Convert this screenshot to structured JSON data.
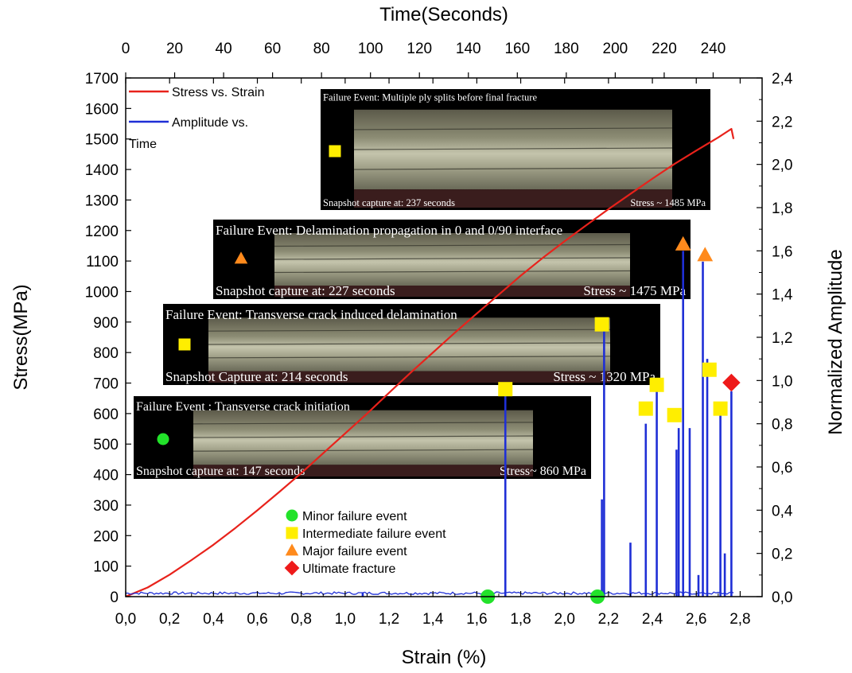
{
  "chart_data": {
    "type": "line",
    "axes": {
      "x_bottom": {
        "label": "Strain (%)",
        "range": [
          0.0,
          2.9
        ],
        "ticks": [
          "0,0",
          "0,2",
          "0,4",
          "0,6",
          "0,8",
          "1,0",
          "1,2",
          "1,4",
          "1,6",
          "1,8",
          "2,0",
          "2,2",
          "2,4",
          "2,6",
          "2,8"
        ]
      },
      "x_top": {
        "label": "Time(Seconds)",
        "range": [
          0,
          260
        ],
        "ticks": [
          "0",
          "20",
          "40",
          "60",
          "80",
          "100",
          "120",
          "140",
          "160",
          "180",
          "200",
          "220",
          "240"
        ]
      },
      "y_left": {
        "label": "Stress(MPa)",
        "range": [
          0,
          1700
        ],
        "ticks": [
          "0",
          "100",
          "200",
          "300",
          "400",
          "500",
          "600",
          "700",
          "800",
          "900",
          "1000",
          "1100",
          "1200",
          "1300",
          "1400",
          "1500",
          "1600",
          "1700"
        ]
      },
      "y_right": {
        "label": "Normalized Amplitude",
        "range": [
          0.0,
          2.4
        ],
        "ticks": [
          "0,0",
          "0,2",
          "0,4",
          "0,6",
          "0,8",
          "1,0",
          "1,2",
          "1,4",
          "1,6",
          "1,8",
          "2,0",
          "2,2",
          "2,4"
        ]
      }
    },
    "legend_top": [
      {
        "label": "Stress vs. Strain",
        "color": "#e8221b"
      },
      {
        "label": "Amplitude vs.",
        "label2": "Time",
        "color": "#1f2fd6"
      }
    ],
    "series": [
      {
        "name": "Stress vs. Strain",
        "color": "#e8221b",
        "points": [
          [
            0.0,
            0
          ],
          [
            0.1,
            30
          ],
          [
            0.2,
            72
          ],
          [
            0.3,
            120
          ],
          [
            0.4,
            170
          ],
          [
            0.5,
            225
          ],
          [
            0.6,
            283
          ],
          [
            0.7,
            343
          ],
          [
            0.8,
            405
          ],
          [
            0.9,
            470
          ],
          [
            1.0,
            535
          ],
          [
            1.1,
            600
          ],
          [
            1.2,
            668
          ],
          [
            1.3,
            735
          ],
          [
            1.4,
            800
          ],
          [
            1.5,
            865
          ],
          [
            1.6,
            928
          ],
          [
            1.7,
            990
          ],
          [
            1.8,
            1052
          ],
          [
            1.9,
            1110
          ],
          [
            2.0,
            1165
          ],
          [
            2.1,
            1218
          ],
          [
            2.2,
            1270
          ],
          [
            2.3,
            1320
          ],
          [
            2.4,
            1370
          ],
          [
            2.5,
            1418
          ],
          [
            2.6,
            1462
          ],
          [
            2.7,
            1505
          ],
          [
            2.76,
            1533
          ],
          [
            2.77,
            1500
          ]
        ]
      },
      {
        "name": "Amplitude vs. Time",
        "color": "#1f2fd6",
        "baseline": 0.01,
        "spikes": [
          [
            1.08,
            0.02
          ],
          [
            1.73,
            0.95
          ],
          [
            2.17,
            0.45
          ],
          [
            2.18,
            1.25
          ],
          [
            2.3,
            0.25
          ],
          [
            2.37,
            0.8
          ],
          [
            2.42,
            0.95
          ],
          [
            2.51,
            0.68
          ],
          [
            2.52,
            0.78
          ],
          [
            2.54,
            1.6
          ],
          [
            2.57,
            0.78
          ],
          [
            2.61,
            0.1
          ],
          [
            2.63,
            1.55
          ],
          [
            2.65,
            1.1
          ],
          [
            2.71,
            0.85
          ],
          [
            2.73,
            0.2
          ],
          [
            2.76,
            0.95
          ]
        ]
      }
    ],
    "markers": [
      {
        "type": "minor",
        "x": 1.65,
        "y": 0.0,
        "shape": "circle"
      },
      {
        "type": "minor",
        "x": 2.15,
        "y": 0.0,
        "shape": "circle"
      },
      {
        "type": "intermediate",
        "x": 1.73,
        "y": 0.96,
        "shape": "square"
      },
      {
        "type": "intermediate",
        "x": 2.17,
        "y": 1.26,
        "shape": "square"
      },
      {
        "type": "intermediate",
        "x": 2.37,
        "y": 0.87,
        "shape": "square"
      },
      {
        "type": "intermediate",
        "x": 2.42,
        "y": 0.98,
        "shape": "square"
      },
      {
        "type": "intermediate",
        "x": 2.5,
        "y": 0.84,
        "shape": "square"
      },
      {
        "type": "intermediate",
        "x": 2.66,
        "y": 1.05,
        "shape": "square"
      },
      {
        "type": "intermediate",
        "x": 2.71,
        "y": 0.87,
        "shape": "square"
      },
      {
        "type": "major",
        "x": 2.54,
        "y": 1.63,
        "shape": "triangle"
      },
      {
        "type": "major",
        "x": 2.64,
        "y": 1.58,
        "shape": "triangle"
      },
      {
        "type": "ultimate",
        "x": 2.76,
        "y": 0.99,
        "shape": "diamond"
      }
    ],
    "marker_legend": [
      {
        "type": "minor",
        "label": "Minor failure event",
        "color": "#22e22a"
      },
      {
        "type": "intermediate",
        "label": "Intermediate failure event",
        "color": "#ffee00"
      },
      {
        "type": "major",
        "label": "Major failure event",
        "color": "#ff8a1c"
      },
      {
        "type": "ultimate",
        "label": "Ultimate fracture",
        "color": "#ee1a1a"
      }
    ],
    "snapshots": [
      {
        "title": "Failure Event: Multiple ply splits before final fracture",
        "capture": "Snapshot capture at: 237 seconds",
        "stress": "Stress ~ 1485 MPa",
        "marker": "intermediate"
      },
      {
        "title": "Failure Event: Delamination propagation in 0 and 0/90 interface",
        "capture": "Snapshot capture at: 227 seconds",
        "stress": "Stress ~ 1475 MPa",
        "marker": "major"
      },
      {
        "title": "Failure Event: Transverse crack induced delamination",
        "capture": "Snapshot Capture at: 214 seconds",
        "stress": "Stress ~ 1320 MPa",
        "marker": "intermediate"
      },
      {
        "title": "Failure Event : Transverse crack initiation",
        "capture": "Snapshot capture at: 147 seconds",
        "stress": "Stress~ 860 MPa",
        "marker": "minor"
      }
    ]
  }
}
